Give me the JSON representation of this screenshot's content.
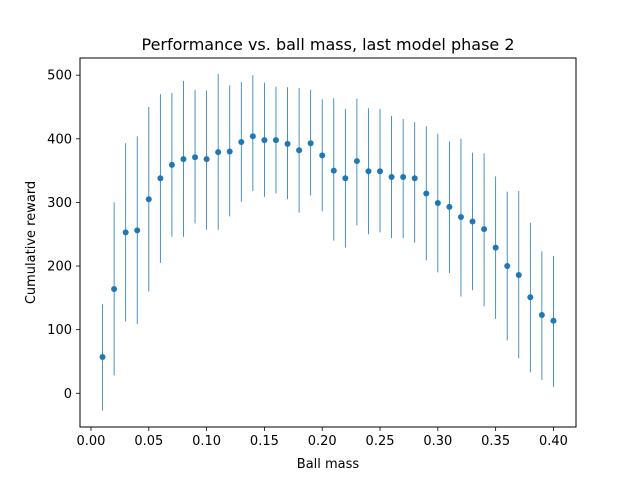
{
  "chart_data": {
    "type": "scatter",
    "title": "Performance vs. ball mass, last model phase 2",
    "xlabel": "Ball mass",
    "ylabel": "Cumulative reward",
    "xlim": [
      -0.0095,
      0.4195
    ],
    "ylim": [
      -53,
      527
    ],
    "xticks": [
      0.0,
      0.05,
      0.1,
      0.15,
      0.2,
      0.25,
      0.3,
      0.35,
      0.4
    ],
    "xtick_labels": [
      "0.00",
      "0.05",
      "0.10",
      "0.15",
      "0.20",
      "0.25",
      "0.30",
      "0.35",
      "0.40"
    ],
    "yticks": [
      0,
      100,
      200,
      300,
      400,
      500
    ],
    "ytick_labels": [
      "0",
      "100",
      "200",
      "300",
      "400",
      "500"
    ],
    "grid": false,
    "legend": false,
    "marker_color": "#1f77b4",
    "series": [
      {
        "x": [
          0.01,
          0.02,
          0.03,
          0.04,
          0.05,
          0.06,
          0.07,
          0.08,
          0.09,
          0.1,
          0.11,
          0.12,
          0.13,
          0.14,
          0.15,
          0.16,
          0.17,
          0.18,
          0.19,
          0.2,
          0.21,
          0.22,
          0.23,
          0.24,
          0.25,
          0.26,
          0.27,
          0.28,
          0.29,
          0.3,
          0.31,
          0.32,
          0.33,
          0.34,
          0.35,
          0.36,
          0.37,
          0.38,
          0.39,
          0.4
        ],
        "y": [
          57,
          164,
          253,
          256,
          305,
          338,
          359,
          368,
          371,
          368,
          379,
          380,
          395,
          404,
          398,
          398,
          392,
          382,
          393,
          374,
          350,
          338,
          365,
          349,
          349,
          340,
          340,
          338,
          314,
          299,
          293,
          277,
          270,
          258,
          229,
          200,
          186,
          151,
          123,
          114
        ],
        "err_low": [
          -27,
          28,
          113,
          109,
          160,
          205,
          246,
          246,
          267,
          257,
          257,
          278,
          301,
          318,
          309,
          314,
          305,
          284,
          311,
          286,
          240,
          229,
          264,
          250,
          253,
          244,
          244,
          237,
          209,
          190,
          189,
          152,
          162,
          137,
          117,
          83,
          55,
          33,
          21,
          10
        ],
        "err_high": [
          140,
          300,
          393,
          404,
          450,
          470,
          472,
          491,
          477,
          476,
          502,
          484,
          489,
          500,
          488,
          482,
          481,
          480,
          477,
          462,
          464,
          447,
          463,
          448,
          447,
          436,
          431,
          426,
          420,
          408,
          396,
          400,
          378,
          377,
          341,
          317,
          318,
          268,
          223,
          216
        ]
      }
    ]
  }
}
